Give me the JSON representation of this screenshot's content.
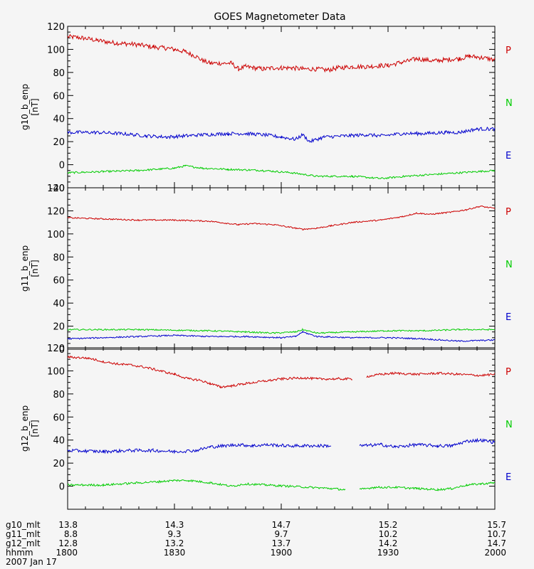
{
  "chart_data": {
    "type": "line",
    "title": "GOES Magnetometer Data",
    "x": {
      "label": "hhmm",
      "ticks": [
        "1800",
        "1830",
        "1900",
        "1930",
        "2000"
      ],
      "range_minutes": [
        0,
        120
      ],
      "date": "2007 Jan 17"
    },
    "mlt_rows": [
      {
        "label": "g10_mlt",
        "values": [
          "13.8",
          "14.3",
          "14.7",
          "15.2",
          "15.7"
        ]
      },
      {
        "label": "g11_mlt",
        "values": [
          "8.8",
          "9.3",
          "9.7",
          "10.2",
          "10.7"
        ]
      },
      {
        "label": "g12_mlt",
        "values": [
          "12.8",
          "13.2",
          "13.7",
          "14.2",
          "14.7"
        ]
      }
    ],
    "panels": [
      {
        "ylabel": "g10_b_enp",
        "yunits": "[nT]",
        "ylim": [
          -20,
          120
        ],
        "yticks": [
          -20,
          0,
          20,
          40,
          60,
          80,
          100,
          120
        ],
        "legend": [
          "P",
          "N",
          "E"
        ],
        "series": [
          {
            "name": "P",
            "color": "#cc0000",
            "noise": 2.0,
            "points": [
              [
                0,
                111
              ],
              [
                4,
                110
              ],
              [
                8,
                108
              ],
              [
                12,
                106
              ],
              [
                16,
                105
              ],
              [
                20,
                104
              ],
              [
                24,
                102
              ],
              [
                28,
                101
              ],
              [
                30,
                100
              ],
              [
                33,
                98
              ],
              [
                36,
                94
              ],
              [
                38,
                90
              ],
              [
                40,
                88
              ],
              [
                44,
                88
              ],
              [
                46,
                88
              ],
              [
                48,
                83
              ],
              [
                50,
                85
              ],
              [
                52,
                84
              ],
              [
                55,
                83
              ],
              [
                58,
                84
              ],
              [
                60,
                84
              ],
              [
                63,
                84
              ],
              [
                66,
                83
              ],
              [
                70,
                83
              ],
              [
                73,
                82
              ],
              [
                76,
                84
              ],
              [
                80,
                85
              ],
              [
                84,
                85
              ],
              [
                88,
                86
              ],
              [
                90,
                86
              ],
              [
                94,
                89
              ],
              [
                96,
                90
              ],
              [
                98,
                92
              ],
              [
                100,
                91
              ],
              [
                103,
                90
              ],
              [
                106,
                91
              ],
              [
                110,
                92
              ],
              [
                113,
                94
              ],
              [
                116,
                93
              ],
              [
                120,
                91
              ]
            ]
          },
          {
            "name": "N",
            "color": "#00cc00",
            "noise": 0.8,
            "points": [
              [
                0,
                -7
              ],
              [
                10,
                -6
              ],
              [
                20,
                -5
              ],
              [
                25,
                -4
              ],
              [
                30,
                -3
              ],
              [
                33,
                -1
              ],
              [
                38,
                -3
              ],
              [
                45,
                -4
              ],
              [
                55,
                -5
              ],
              [
                63,
                -7
              ],
              [
                70,
                -10
              ],
              [
                80,
                -10
              ],
              [
                88,
                -12
              ],
              [
                95,
                -10
              ],
              [
                105,
                -8
              ],
              [
                115,
                -6
              ],
              [
                120,
                -5
              ]
            ]
          },
          {
            "name": "E",
            "color": "#0000cc",
            "noise": 1.5,
            "points": [
              [
                0,
                28
              ],
              [
                8,
                28
              ],
              [
                15,
                27
              ],
              [
                22,
                25
              ],
              [
                28,
                24
              ],
              [
                33,
                25
              ],
              [
                38,
                26
              ],
              [
                45,
                27
              ],
              [
                50,
                27
              ],
              [
                55,
                26
              ],
              [
                60,
                24
              ],
              [
                64,
                22
              ],
              [
                66,
                26
              ],
              [
                68,
                20
              ],
              [
                72,
                24
              ],
              [
                78,
                25
              ],
              [
                84,
                26
              ],
              [
                88,
                25
              ],
              [
                94,
                27
              ],
              [
                100,
                27
              ],
              [
                106,
                28
              ],
              [
                110,
                28
              ],
              [
                115,
                31
              ],
              [
                120,
                31
              ]
            ]
          }
        ]
      },
      {
        "ylabel": "g11_b_enp",
        "yunits": "[nT]",
        "ylim": [
          0,
          140
        ],
        "yticks": [
          0,
          20,
          40,
          60,
          80,
          100,
          120,
          140
        ],
        "legend": [
          "P",
          "N",
          "E"
        ],
        "series": [
          {
            "name": "P",
            "color": "#cc0000",
            "noise": 0.6,
            "points": [
              [
                0,
                114
              ],
              [
                10,
                113
              ],
              [
                20,
                112
              ],
              [
                30,
                112
              ],
              [
                40,
                111
              ],
              [
                48,
                108
              ],
              [
                52,
                109
              ],
              [
                58,
                108
              ],
              [
                62,
                106
              ],
              [
                66,
                104
              ],
              [
                70,
                105
              ],
              [
                74,
                107
              ],
              [
                80,
                110
              ],
              [
                88,
                112
              ],
              [
                94,
                115
              ],
              [
                98,
                118
              ],
              [
                102,
                117
              ],
              [
                108,
                119
              ],
              [
                112,
                121
              ],
              [
                116,
                124
              ],
              [
                120,
                122
              ]
            ]
          },
          {
            "name": "N",
            "color": "#00cc00",
            "noise": 0.6,
            "points": [
              [
                0,
                17
              ],
              [
                20,
                17
              ],
              [
                40,
                16
              ],
              [
                50,
                15
              ],
              [
                58,
                14
              ],
              [
                64,
                15
              ],
              [
                66,
                17
              ],
              [
                70,
                14
              ],
              [
                80,
                15
              ],
              [
                90,
                16
              ],
              [
                100,
                16
              ],
              [
                110,
                17
              ],
              [
                120,
                17
              ]
            ]
          },
          {
            "name": "E",
            "color": "#0000cc",
            "noise": 0.6,
            "points": [
              [
                0,
                9
              ],
              [
                10,
                10
              ],
              [
                20,
                11
              ],
              [
                30,
                12
              ],
              [
                40,
                11
              ],
              [
                50,
                11
              ],
              [
                60,
                10
              ],
              [
                64,
                11
              ],
              [
                66,
                15
              ],
              [
                70,
                11
              ],
              [
                80,
                10
              ],
              [
                90,
                10
              ],
              [
                100,
                9
              ],
              [
                110,
                7
              ],
              [
                120,
                8
              ]
            ]
          }
        ]
      },
      {
        "ylabel": "g12_b_enp",
        "yunits": "[nT]",
        "ylim": [
          -20,
          120
        ],
        "yticks": [
          0,
          20,
          40,
          60,
          80,
          100,
          120
        ],
        "legend": [
          "P",
          "N",
          "E"
        ],
        "series": [
          {
            "name": "P",
            "color": "#cc0000",
            "noise": 1.0,
            "points": [
              [
                0,
                112
              ],
              [
                6,
                111
              ],
              [
                10,
                108
              ],
              [
                14,
                106
              ],
              [
                18,
                105
              ],
              [
                22,
                103
              ],
              [
                26,
                100
              ],
              [
                30,
                97
              ],
              [
                34,
                93
              ],
              [
                37,
                92
              ],
              [
                40,
                89
              ],
              [
                43,
                86
              ],
              [
                46,
                87
              ],
              [
                50,
                89
              ],
              [
                55,
                91
              ],
              [
                60,
                93
              ],
              [
                66,
                94
              ],
              [
                70,
                93
              ],
              [
                76,
                93
              ],
              [
                80,
                93
              ],
              [
                82,
                null
              ],
              [
                84,
                95
              ],
              [
                88,
                97
              ],
              [
                92,
                98
              ],
              [
                98,
                97
              ],
              [
                104,
                98
              ],
              [
                110,
                97
              ],
              [
                116,
                96
              ],
              [
                120,
                97
              ]
            ]
          },
          {
            "name": "N",
            "color": "#00cc00",
            "noise": 0.9,
            "points": [
              [
                0,
                1
              ],
              [
                10,
                1
              ],
              [
                20,
                3
              ],
              [
                26,
                4
              ],
              [
                30,
                5
              ],
              [
                34,
                5
              ],
              [
                40,
                3
              ],
              [
                46,
                0
              ],
              [
                50,
                2
              ],
              [
                56,
                1
              ],
              [
                62,
                0
              ],
              [
                68,
                -1
              ],
              [
                74,
                -2
              ],
              [
                78,
                -3
              ],
              [
                80,
                null
              ],
              [
                82,
                -3
              ],
              [
                86,
                -1
              ],
              [
                92,
                -1
              ],
              [
                98,
                -2
              ],
              [
                104,
                -3
              ],
              [
                108,
                -2
              ],
              [
                112,
                1
              ],
              [
                116,
                2
              ],
              [
                120,
                3
              ]
            ]
          },
          {
            "name": "E",
            "color": "#0000cc",
            "noise": 1.4,
            "points": [
              [
                0,
                31
              ],
              [
                10,
                30
              ],
              [
                18,
                31
              ],
              [
                24,
                31
              ],
              [
                30,
                30
              ],
              [
                36,
                31
              ],
              [
                40,
                34
              ],
              [
                44,
                35
              ],
              [
                48,
                36
              ],
              [
                52,
                35
              ],
              [
                56,
                36
              ],
              [
                62,
                35
              ],
              [
                68,
                35
              ],
              [
                74,
                35
              ],
              [
                80,
                null
              ],
              [
                82,
                35
              ],
              [
                88,
                36
              ],
              [
                92,
                34
              ],
              [
                98,
                36
              ],
              [
                104,
                35
              ],
              [
                108,
                35
              ],
              [
                112,
                39
              ],
              [
                116,
                40
              ],
              [
                120,
                38
              ]
            ]
          }
        ]
      }
    ]
  }
}
